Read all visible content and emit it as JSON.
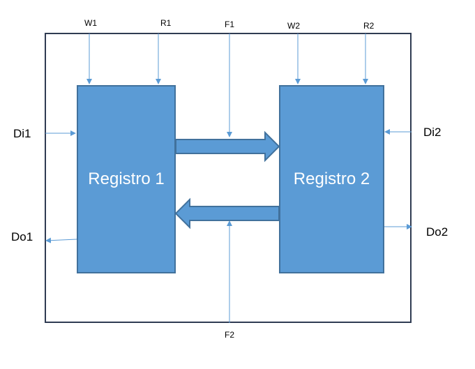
{
  "diagram": {
    "register1": {
      "label": "Registro 1"
    },
    "register2": {
      "label": "Registro 2"
    },
    "signals": {
      "w1": "W1",
      "r1": "R1",
      "f1": "F1",
      "w2": "W2",
      "r2": "R2",
      "f2": "F2",
      "di1": "Di1",
      "do1": "Do1",
      "di2": "Di2",
      "do2": "Do2"
    },
    "colors": {
      "register_fill": "#5b9bd5",
      "register_border": "#41719c",
      "wire": "#5b9bd5",
      "frame": "#2f3b52"
    }
  }
}
